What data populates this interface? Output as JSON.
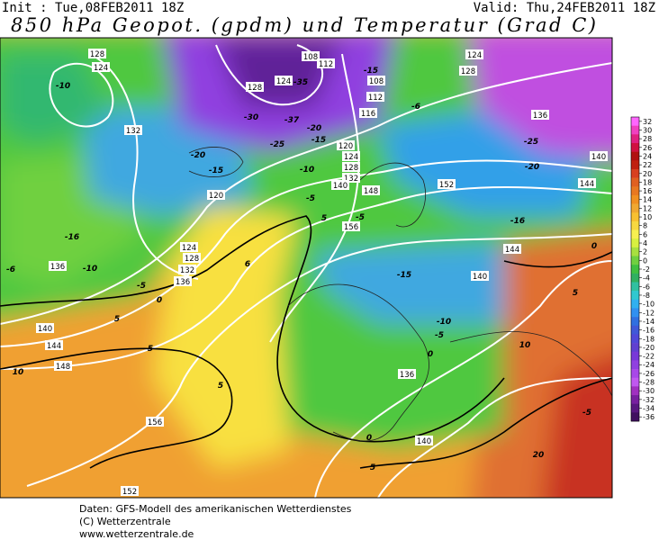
{
  "header": {
    "init": "Init : Tue,08FEB2011 18Z",
    "valid": "Valid: Thu,24FEB2011 18Z",
    "title": "850 hPa Geopot. (gpdm) und Temperatur (Grad C)"
  },
  "map": {
    "geopotential_labels": [
      "128",
      "124",
      "132",
      "124",
      "128",
      "132",
      "136",
      "136",
      "140",
      "144",
      "148",
      "156",
      "152",
      "120",
      "116",
      "112",
      "108",
      "108",
      "112",
      "128",
      "124",
      "120",
      "124",
      "128",
      "132",
      "140",
      "148",
      "156",
      "152",
      "144",
      "140",
      "136",
      "140",
      "136",
      "144",
      "140",
      "124",
      "128"
    ],
    "temperature_labels": [
      "-10",
      "-30",
      "-35",
      "-37",
      "-25",
      "-20",
      "-15",
      "-20",
      "-15",
      "-10",
      "-5",
      "-5",
      "-15",
      "-6",
      "-25",
      "-20",
      "-16",
      "-16",
      "-6",
      "-10",
      "-5",
      "0",
      "6",
      "5",
      "0",
      "-15",
      "5",
      "-10",
      "-5",
      "10",
      "5",
      "5",
      "10",
      "5",
      "0",
      "0",
      "5",
      "20",
      "-5"
    ]
  },
  "colorbar": {
    "labels": [
      32,
      30,
      28,
      26,
      24,
      22,
      20,
      18,
      16,
      14,
      12,
      10,
      8,
      6,
      4,
      2,
      0,
      -2,
      -4,
      -6,
      -8,
      -10,
      -12,
      -14,
      -16,
      -18,
      -20,
      -22,
      -24,
      -26,
      -28,
      -30,
      -32,
      -34,
      -36
    ],
    "colors": [
      "#ff66ff",
      "#f040c0",
      "#e02080",
      "#d01040",
      "#b01010",
      "#c02010",
      "#d84020",
      "#e06020",
      "#e87820",
      "#f09020",
      "#f0a830",
      "#f8c030",
      "#f8d840",
      "#f8f050",
      "#d8f040",
      "#a8e040",
      "#70d040",
      "#40c040",
      "#30b060",
      "#30c0a0",
      "#30c8d0",
      "#30b0f0",
      "#3090f0",
      "#3070e0",
      "#4058d8",
      "#5048d8",
      "#6040d0",
      "#7838d8",
      "#9040e0",
      "#a848e8",
      "#c058f0",
      "#a030c0",
      "#7820a0",
      "#581880",
      "#401060"
    ]
  },
  "footer": {
    "source": "Daten: GFS-Modell des amerikanischen Wetterdienstes",
    "copyright": "(C) Wetterzentrale",
    "url": "www.wetterzentrale.de"
  }
}
